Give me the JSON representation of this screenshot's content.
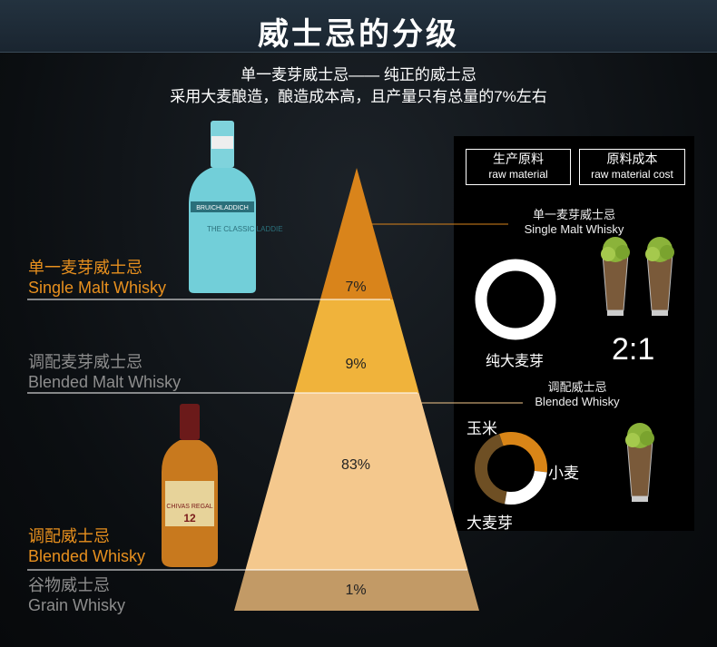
{
  "title": "威士忌的分级",
  "subtitle_line1": "单一麦芽威士忌—— 纯正的威士忌",
  "subtitle_line2": "采用大麦酿造，酿造成本高，且产量只有总量的7%左右",
  "legend_boxes": [
    {
      "zh": "生产原料",
      "en": "raw material"
    },
    {
      "zh": "原料成本",
      "en": "raw material cost"
    }
  ],
  "pyramid": [
    {
      "zh": "单一麦芽威士忌",
      "en": "Single Malt Whisky",
      "percent": "7%",
      "color": "#d9841b",
      "label_color": "#e8901e"
    },
    {
      "zh": "调配麦芽威士忌",
      "en": "Blended Malt Whisky",
      "percent": "9%",
      "color": "#f0b33b",
      "label_color": "#8d8d8d"
    },
    {
      "zh": "调配威士忌",
      "en": "Blended Whisky",
      "percent": "83%",
      "color": "#f4c88d",
      "label_color": "#e8901e"
    },
    {
      "zh": "谷物威士忌",
      "en": "Grain Whisky",
      "percent": "1%",
      "color": "#c29a66",
      "label_color": "#8d8d8d"
    }
  ],
  "single_malt": {
    "zh": "单一麦芽威士忌",
    "en": "Single Malt Whisky",
    "ingredient": "纯大麦芽",
    "cost_ratio": "2:1",
    "ring_color": "#ffffff"
  },
  "blended": {
    "zh": "调配威士忌",
    "en": "Blended Whisky",
    "ingredients": [
      {
        "name": "玉米",
        "color": "#6e4f24",
        "share": 0.42
      },
      {
        "name": "小麦",
        "color": "#d98517",
        "share": 0.32
      },
      {
        "name": "大麦芽",
        "color": "#ffffff",
        "share": 0.26
      }
    ]
  },
  "bottle1": {
    "brand": "BRUICHLADDICH",
    "name": "THE CLASSIC LADDIE"
  },
  "bottle2": {
    "brand": "CHIVAS REGAL",
    "age": "12"
  }
}
